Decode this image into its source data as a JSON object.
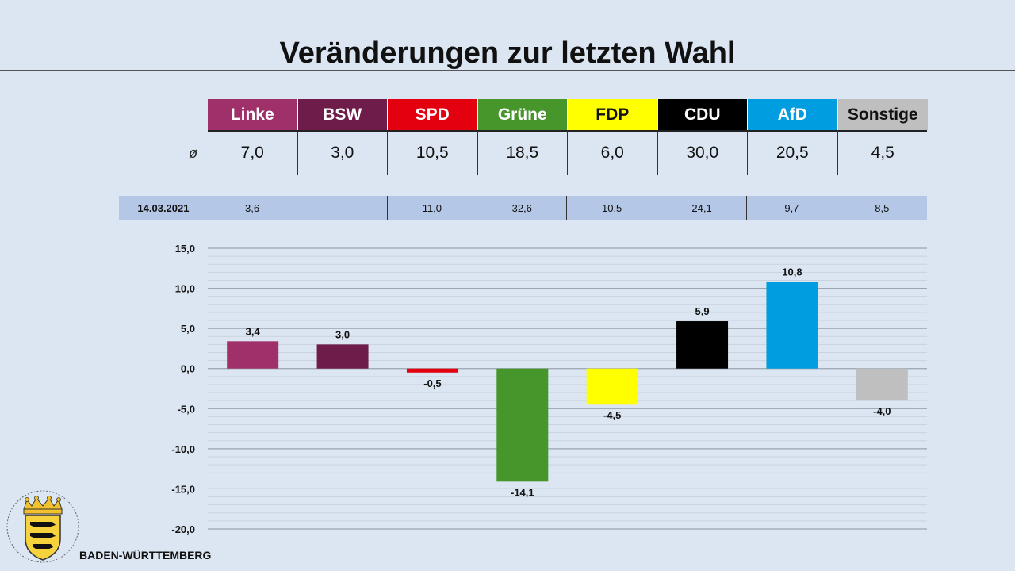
{
  "title": "Veränderungen zur letzten Wahl",
  "state_name": "BADEN-WÜRTTEMBERG",
  "avg_symbol": "ø",
  "parties": [
    {
      "name": "Linke",
      "bg": "#a0306a",
      "fg": "#ffffff"
    },
    {
      "name": "BSW",
      "bg": "#6e1d4a",
      "fg": "#ffffff"
    },
    {
      "name": "SPD",
      "bg": "#e3000f",
      "fg": "#ffffff"
    },
    {
      "name": "Grüne",
      "bg": "#46962b",
      "fg": "#ffffff"
    },
    {
      "name": "FDP",
      "bg": "#ffff00",
      "fg": "#111111"
    },
    {
      "name": "CDU",
      "bg": "#000000",
      "fg": "#ffffff"
    },
    {
      "name": "AfD",
      "bg": "#009ee0",
      "fg": "#ffffff"
    },
    {
      "name": "Sonstige",
      "bg": "#bfbfbf",
      "fg": "#111111"
    }
  ],
  "poll_averages": [
    "7,0",
    "3,0",
    "10,5",
    "18,5",
    "6,0",
    "30,0",
    "20,5",
    "4,5"
  ],
  "previous_election": {
    "date": "14.03.2021",
    "values": [
      "3,6",
      "-",
      "11,0",
      "32,6",
      "10,5",
      "24,1",
      "9,7",
      "8,5"
    ]
  },
  "chart_data": {
    "type": "bar",
    "categories": [
      "Linke",
      "BSW",
      "SPD",
      "Grüne",
      "FDP",
      "CDU",
      "AfD",
      "Sonstige"
    ],
    "values": [
      3.4,
      3.0,
      -0.5,
      -14.1,
      -4.5,
      5.9,
      10.8,
      -4.0
    ],
    "value_labels": [
      "3,4",
      "3,0",
      "-0,5",
      "-14,1",
      "-4,5",
      "5,9",
      "10,8",
      "-4,0"
    ],
    "colors": [
      "#a0306a",
      "#6e1d4a",
      "#e3000f",
      "#46962b",
      "#ffff00",
      "#000000",
      "#009ee0",
      "#bfbfbf"
    ],
    "ylim": [
      -20,
      15
    ],
    "y_ticks": [
      15,
      10,
      5,
      0,
      -5,
      -10,
      -15,
      -20
    ],
    "y_tick_labels": [
      "15,0",
      "10,0",
      "5,0",
      "0,0",
      "-5,0",
      "-10,0",
      "-15,0",
      "-20,0"
    ],
    "grid": true,
    "legend": "none"
  }
}
